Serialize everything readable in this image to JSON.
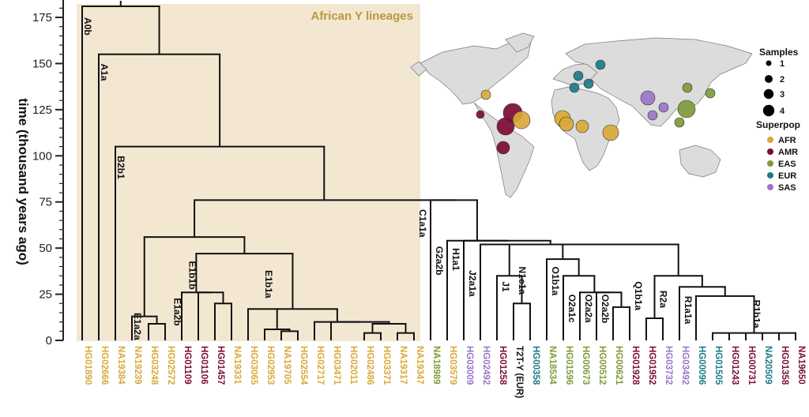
{
  "chart_data": {
    "type": "dendrogram",
    "title": "",
    "highlight_label": "African Y lineages",
    "ylabel": "time (thousand years ago)",
    "ylim": [
      0,
      180
    ],
    "yticks": [
      0,
      25,
      50,
      75,
      100,
      125,
      150,
      175
    ],
    "colors": {
      "AFR": "#d9a838",
      "AMR": "#7a0b35",
      "EAS": "#7f9a3a",
      "EUR": "#1a7b86",
      "SAS": "#9a76c8",
      "REF": "#111111",
      "highlight_bg": "#f3e7d1",
      "highlight_text": "#b89a3a"
    },
    "leaves": [
      {
        "id": "HG01890",
        "pop": "AFR"
      },
      {
        "id": "HG02666",
        "pop": "AFR"
      },
      {
        "id": "NA19384",
        "pop": "AFR"
      },
      {
        "id": "NA19239",
        "pop": "AFR"
      },
      {
        "id": "HG03248",
        "pop": "AFR"
      },
      {
        "id": "HG02572",
        "pop": "AFR"
      },
      {
        "id": "HG01109",
        "pop": "AMR"
      },
      {
        "id": "HG01106",
        "pop": "AMR"
      },
      {
        "id": "HG01457",
        "pop": "AMR"
      },
      {
        "id": "NA19331",
        "pop": "AFR"
      },
      {
        "id": "HG03065",
        "pop": "AFR"
      },
      {
        "id": "HG02953",
        "pop": "AFR"
      },
      {
        "id": "NA19705",
        "pop": "AFR"
      },
      {
        "id": "HG02554",
        "pop": "AFR"
      },
      {
        "id": "HG02717",
        "pop": "AFR"
      },
      {
        "id": "HG03471",
        "pop": "AFR"
      },
      {
        "id": "HG02011",
        "pop": "AFR"
      },
      {
        "id": "HG02486",
        "pop": "AFR"
      },
      {
        "id": "HG03371",
        "pop": "AFR"
      },
      {
        "id": "NA19317",
        "pop": "AFR"
      },
      {
        "id": "NA19347",
        "pop": "AFR"
      },
      {
        "id": "NA18989",
        "pop": "EAS"
      },
      {
        "id": "HG03579",
        "pop": "AFR"
      },
      {
        "id": "HG03009",
        "pop": "SAS"
      },
      {
        "id": "HG02492",
        "pop": "SAS"
      },
      {
        "id": "HG01258",
        "pop": "AMR"
      },
      {
        "id": "T2T-Y (EUR)",
        "pop": "REF"
      },
      {
        "id": "HG00358",
        "pop": "EUR"
      },
      {
        "id": "NA18534",
        "pop": "EAS"
      },
      {
        "id": "HG01596",
        "pop": "EAS"
      },
      {
        "id": "HG00673",
        "pop": "EAS"
      },
      {
        "id": "HG00512",
        "pop": "EAS"
      },
      {
        "id": "HG00621",
        "pop": "EAS"
      },
      {
        "id": "HG01928",
        "pop": "AMR"
      },
      {
        "id": "HG01952",
        "pop": "AMR"
      },
      {
        "id": "HG03732",
        "pop": "SAS"
      },
      {
        "id": "HG03492",
        "pop": "SAS"
      },
      {
        "id": "HG00096",
        "pop": "EUR"
      },
      {
        "id": "HG01505",
        "pop": "EUR"
      },
      {
        "id": "HG01243",
        "pop": "AMR"
      },
      {
        "id": "HG00731",
        "pop": "AMR"
      },
      {
        "id": "NA20509",
        "pop": "EUR"
      },
      {
        "id": "HG01358",
        "pop": "AMR"
      },
      {
        "id": "NA19650",
        "pop": "AMR"
      }
    ],
    "haplogroup_labels": [
      {
        "name": "A0b",
        "time": 175
      },
      {
        "name": "A1a",
        "time": 150
      },
      {
        "name": "B2b1",
        "time": 100
      },
      {
        "name": "E1a2a",
        "time": 15
      },
      {
        "name": "E1a2b",
        "time": 23
      },
      {
        "name": "E1b1b",
        "time": 43
      },
      {
        "name": "E1b1a",
        "time": 38
      },
      {
        "name": "C1a1a",
        "time": 71
      },
      {
        "name": "G2a2b",
        "time": 51
      },
      {
        "name": "H1a1",
        "time": 50
      },
      {
        "name": "J2a1a",
        "time": 38
      },
      {
        "name": "J1",
        "time": 32
      },
      {
        "name": "N1c1a",
        "time": 40
      },
      {
        "name": "O1b1a",
        "time": 40
      },
      {
        "name": "O2a1c",
        "time": 25
      },
      {
        "name": "O2a2a",
        "time": 25
      },
      {
        "name": "O2a2b",
        "time": 25
      },
      {
        "name": "Q1b1a",
        "time": 32
      },
      {
        "name": "R2a",
        "time": 27
      },
      {
        "name": "R1a1a",
        "time": 24
      },
      {
        "name": "R1b1a",
        "time": 22
      }
    ],
    "map_legend": {
      "samples_title": "Samples",
      "sizes": [
        1,
        2,
        3,
        4
      ],
      "superpop_title": "Superpop",
      "superpops": [
        "AFR",
        "AMR",
        "EAS",
        "EUR",
        "SAS"
      ]
    }
  }
}
